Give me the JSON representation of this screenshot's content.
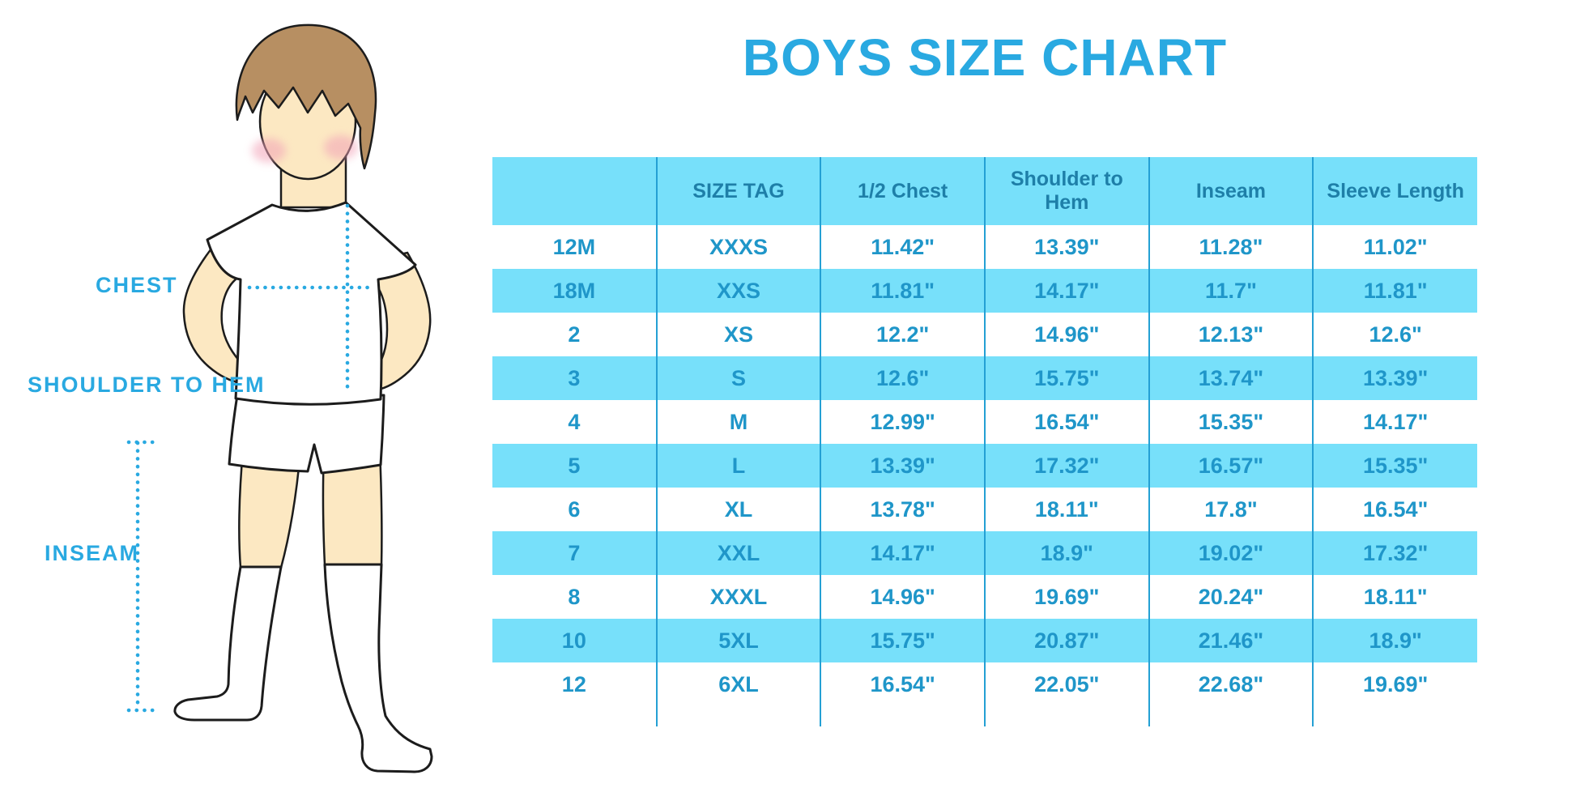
{
  "title": "BOYS SIZE CHART",
  "diagram": {
    "chest_label": "CHEST",
    "shoulder_to_hem_label": "SHOULDER TO HEM",
    "inseam_label": "INSEAM"
  },
  "colors": {
    "accent": "#29A9E1",
    "stripe": "#77E0FA",
    "header_text": "#1E7FA8",
    "cell_text": "#1F96C9",
    "divider": "#24A0D4",
    "skin": "#FCE8C2",
    "hair": "#B78F62",
    "blush": "#F2A3B8",
    "outline": "#1C1C1C"
  },
  "chart_data": {
    "type": "table",
    "title": "BOYS SIZE CHART",
    "columns": [
      "",
      "SIZE TAG",
      "1/2 Chest",
      "Shoulder to Hem",
      "Inseam",
      "Sleeve Length"
    ],
    "rows": [
      [
        "12M",
        "XXXS",
        "11.42\"",
        "13.39\"",
        "11.28\"",
        "11.02\""
      ],
      [
        "18M",
        "XXS",
        "11.81\"",
        "14.17\"",
        "11.7\"",
        "11.81\""
      ],
      [
        "2",
        "XS",
        "12.2\"",
        "14.96\"",
        "12.13\"",
        "12.6\""
      ],
      [
        "3",
        "S",
        "12.6\"",
        "15.75\"",
        "13.74\"",
        "13.39\""
      ],
      [
        "4",
        "M",
        "12.99\"",
        "16.54\"",
        "15.35\"",
        "14.17\""
      ],
      [
        "5",
        "L",
        "13.39\"",
        "17.32\"",
        "16.57\"",
        "15.35\""
      ],
      [
        "6",
        "XL",
        "13.78\"",
        "18.11\"",
        "17.8\"",
        "16.54\""
      ],
      [
        "7",
        "XXL",
        "14.17\"",
        "18.9\"",
        "19.02\"",
        "17.32\""
      ],
      [
        "8",
        "XXXL",
        "14.96\"",
        "19.69\"",
        "20.24\"",
        "18.11\""
      ],
      [
        "10",
        "5XL",
        "15.75\"",
        "20.87\"",
        "21.46\"",
        "18.9\""
      ],
      [
        "12",
        "6XL",
        "16.54\"",
        "22.05\"",
        "22.68\"",
        "19.69\""
      ]
    ]
  }
}
